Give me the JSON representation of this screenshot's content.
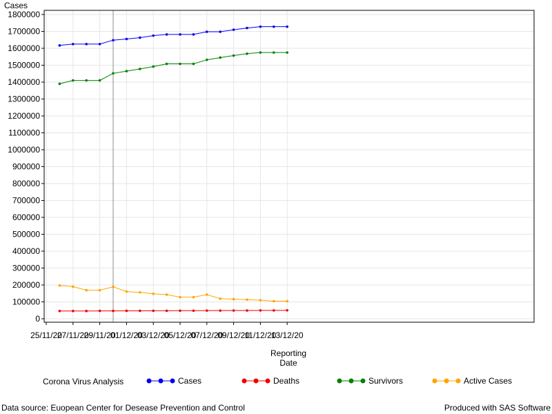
{
  "chart_data": {
    "type": "line",
    "ylabel": "Cases",
    "xlabel_line1": "Reporting",
    "xlabel_line2": "Date",
    "x": [
      "26/11/20",
      "27/11/20",
      "28/11/20",
      "29/11/20",
      "30/11/20",
      "01/12/20",
      "02/12/20",
      "03/12/20",
      "04/12/20",
      "05/12/20",
      "06/12/20",
      "07/12/20",
      "08/12/20",
      "09/12/20",
      "10/12/20",
      "11/12/20",
      "12/12/20",
      "13/12/20"
    ],
    "x_ticks": [
      "25/11/20",
      "27/11/20",
      "29/11/20",
      "01/12/20",
      "03/12/20",
      "05/12/20",
      "07/12/20",
      "09/12/20",
      "11/12/20",
      "13/12/20"
    ],
    "y_ticks": [
      0,
      100000,
      200000,
      300000,
      400000,
      500000,
      600000,
      700000,
      800000,
      900000,
      1000000,
      1100000,
      1200000,
      1300000,
      1400000,
      1500000,
      1600000,
      1700000,
      1800000
    ],
    "ylim": [
      0,
      1800000
    ],
    "reference_line_x": "30/11/20",
    "grid": true,
    "legend_placement": "bottom",
    "series": [
      {
        "name": "Cases",
        "color": "#0000ee",
        "values": [
          1617000,
          1625000,
          1625000,
          1625000,
          1648000,
          1655000,
          1663000,
          1675000,
          1682000,
          1682000,
          1682000,
          1698000,
          1698000,
          1710000,
          1720000,
          1728000,
          1728000,
          1728000
        ]
      },
      {
        "name": "Deaths",
        "color": "#ee0000",
        "values": [
          46000,
          46000,
          46000,
          46500,
          46500,
          47000,
          47000,
          47500,
          47500,
          48000,
          48000,
          48500,
          48500,
          49000,
          49000,
          49500,
          49500,
          50000
        ]
      },
      {
        "name": "Survivors",
        "color": "#008000",
        "values": [
          1390000,
          1410000,
          1410000,
          1410000,
          1452000,
          1465000,
          1478000,
          1492000,
          1508000,
          1508000,
          1508000,
          1532000,
          1545000,
          1557000,
          1568000,
          1575000,
          1575000,
          1575000
        ]
      },
      {
        "name": "Active Cases",
        "color": "#ffa500",
        "values": [
          197000,
          190000,
          169000,
          169000,
          189000,
          161000,
          156000,
          148000,
          143000,
          128000,
          128000,
          143000,
          119000,
          116000,
          113000,
          110000,
          104000,
          104000
        ]
      }
    ]
  },
  "legend": {
    "title": "Corona Virus Analysis"
  },
  "footer": {
    "left": "Data source: Euopean Center for Desease Prevention and Control",
    "right": "Produced with SAS Software"
  }
}
